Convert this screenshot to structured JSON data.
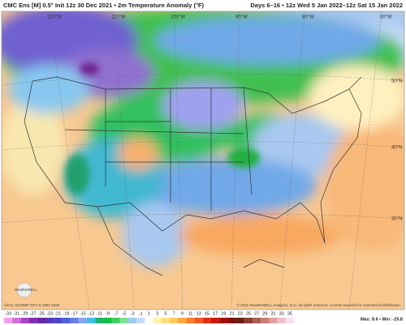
{
  "header": {
    "left": "CMC Ens [M] 0.5° Init 12z 30 Dec 2021 • 2m Temperature Anomaly (°F)",
    "right": "Days 6–16 • 12z Wed 5 Jan 2022–12z Sat 15 Jan 2022"
  },
  "map": {
    "longitudes": [
      "120°W",
      "110°W",
      "100°W",
      "90°W",
      "80°W",
      "60°W"
    ],
    "latitudes": [
      "50°N",
      "40°N",
      "30°N"
    ],
    "climo": "Climo: ECMWF ERA-5 1991-2020",
    "copyright": "© 2021 WeatherBELL Analytics, LLC. All rights reserved. License required for commercial distribution.",
    "logo": "WeatherBELL"
  },
  "colorbar": {
    "labels": [
      -33,
      -31,
      -29,
      -27,
      -25,
      -23,
      -21,
      -19,
      -17,
      -15,
      -13,
      -11,
      -9,
      -7,
      -5,
      -3,
      -1,
      1,
      3,
      5,
      7,
      9,
      11,
      13,
      15,
      17,
      19,
      21,
      23,
      25,
      27,
      29,
      31,
      33,
      35
    ],
    "colors": [
      "#f0a0e8",
      "#d070d8",
      "#a848c8",
      "#8030b0",
      "#6828a0",
      "#5838b8",
      "#4848c8",
      "#5060d8",
      "#6a80e0",
      "#88a8f0",
      "#40c0e0",
      "#20b070",
      "#18c040",
      "#40d060",
      "#80e090",
      "#a0c8f0",
      "#c8dcf8",
      "#ffffff",
      "#fff0b0",
      "#ffe080",
      "#ffc860",
      "#ffa840",
      "#f88030",
      "#f05820",
      "#e03018",
      "#c81810",
      "#a01008",
      "#801008",
      "#682010",
      "#884030",
      "#a86050",
      "#c88070",
      "#e0a0a0",
      "#f0c0c8",
      "#f8e0f0"
    ],
    "stats": "Max: 8.6 • Min: -25.8"
  }
}
